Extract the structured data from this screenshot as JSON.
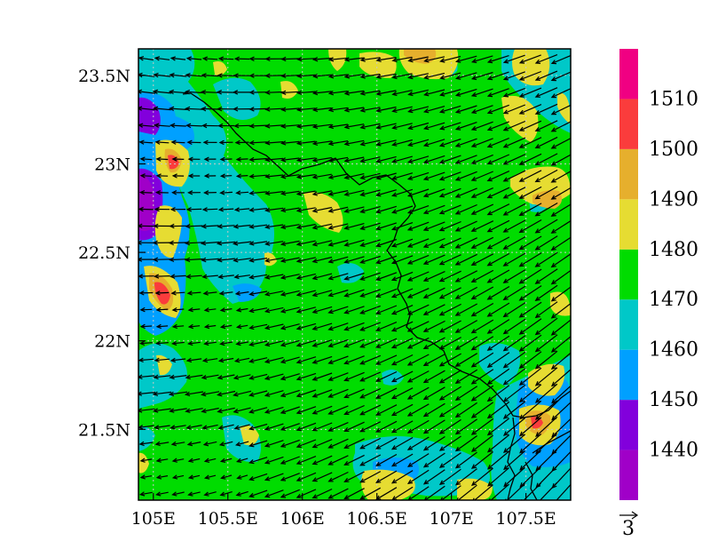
{
  "chart_data": {
    "type": "heatmap",
    "title": "",
    "xlabel": "",
    "ylabel": "",
    "x_ticks": [
      {
        "value": 105.0,
        "label": "105E"
      },
      {
        "value": 105.5,
        "label": "105.5E"
      },
      {
        "value": 106.0,
        "label": "106E"
      },
      {
        "value": 106.5,
        "label": "106.5E"
      },
      {
        "value": 107.0,
        "label": "107E"
      },
      {
        "value": 107.5,
        "label": "107.5E"
      }
    ],
    "y_ticks": [
      {
        "value": 21.5,
        "label": "21.5N"
      },
      {
        "value": 22.0,
        "label": "22N"
      },
      {
        "value": 22.5,
        "label": "22.5N"
      },
      {
        "value": 23.0,
        "label": "23N"
      },
      {
        "value": 23.5,
        "label": "23.5N"
      }
    ],
    "xlim": [
      104.9,
      107.8
    ],
    "ylim": [
      21.1,
      23.65
    ],
    "grid": true,
    "colorbar": {
      "placement": "right",
      "levels": [
        {
          "label": "",
          "color": "#a000c8"
        },
        {
          "label": "1440",
          "color": "#8200dc"
        },
        {
          "label": "1450",
          "color": "#00a0ff"
        },
        {
          "label": "1460",
          "color": "#00c8c8"
        },
        {
          "label": "1470",
          "color": "#00dc00"
        },
        {
          "label": "1480",
          "color": "#e6dc32"
        },
        {
          "label": "1490",
          "color": "#e6af2d"
        },
        {
          "label": "1500",
          "color": "#fa3c3c"
        },
        {
          "label": "1510",
          "color": "#f00082"
        }
      ]
    },
    "vector_reference": {
      "label": "3"
    },
    "wind_pattern": "easterly winds veering to northeasterly toward the east, stronger in the southeast",
    "border": "national boundary line running from north-west to south-east"
  }
}
